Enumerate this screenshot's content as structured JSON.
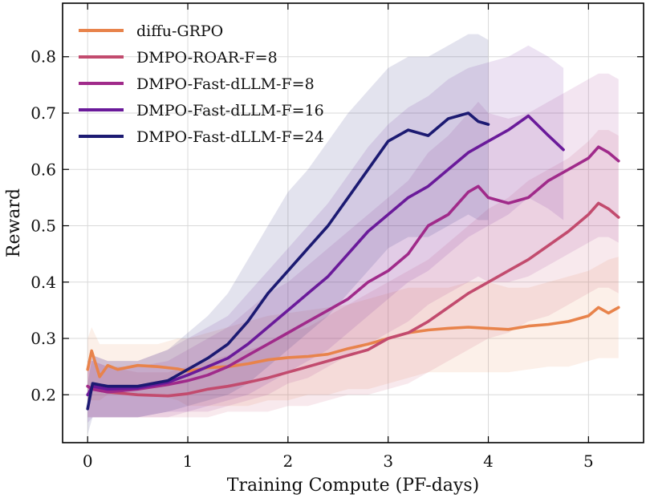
{
  "chart_data": {
    "type": "line",
    "xlabel": "Training Compute (PF-days)",
    "ylabel": "Reward",
    "xlim": [
      -0.25,
      5.55
    ],
    "ylim": [
      0.115,
      0.895
    ],
    "xticks": [
      0,
      1,
      2,
      3,
      4,
      5
    ],
    "yticks": [
      0.2,
      0.3,
      0.4,
      0.5,
      0.6,
      0.7,
      0.8
    ],
    "grid": true,
    "legend_position": "top-left",
    "series": [
      {
        "name": "diffu-GRPO",
        "color": "#e8834b",
        "x": [
          0,
          0.04,
          0.12,
          0.2,
          0.3,
          0.5,
          0.7,
          0.9,
          1.0,
          1.2,
          1.4,
          1.6,
          1.8,
          2.0,
          2.2,
          2.4,
          2.6,
          2.8,
          3.0,
          3.2,
          3.4,
          3.6,
          3.8,
          4.0,
          4.2,
          4.4,
          4.6,
          4.8,
          5.0,
          5.1,
          5.2,
          5.3
        ],
        "y": [
          0.245,
          0.278,
          0.232,
          0.252,
          0.245,
          0.252,
          0.25,
          0.246,
          0.242,
          0.248,
          0.25,
          0.255,
          0.262,
          0.266,
          0.268,
          0.272,
          0.282,
          0.29,
          0.3,
          0.31,
          0.315,
          0.318,
          0.32,
          0.318,
          0.316,
          0.322,
          0.325,
          0.33,
          0.34,
          0.355,
          0.345,
          0.355
        ],
        "lower": [
          0.19,
          0.19,
          0.19,
          0.2,
          0.2,
          0.2,
          0.2,
          0.19,
          0.18,
          0.18,
          0.18,
          0.18,
          0.19,
          0.19,
          0.2,
          0.2,
          0.21,
          0.21,
          0.22,
          0.23,
          0.24,
          0.24,
          0.24,
          0.24,
          0.24,
          0.245,
          0.25,
          0.25,
          0.26,
          0.265,
          0.265,
          0.265
        ],
        "upper": [
          0.3,
          0.32,
          0.29,
          0.29,
          0.29,
          0.29,
          0.29,
          0.3,
          0.3,
          0.31,
          0.32,
          0.33,
          0.34,
          0.345,
          0.35,
          0.355,
          0.36,
          0.37,
          0.38,
          0.39,
          0.39,
          0.39,
          0.4,
          0.4,
          0.39,
          0.39,
          0.4,
          0.41,
          0.42,
          0.43,
          0.44,
          0.445
        ]
      },
      {
        "name": "DMPO-ROAR-F=8",
        "color": "#c24b6e",
        "x": [
          0,
          0.05,
          0.2,
          0.5,
          0.8,
          1.0,
          1.2,
          1.4,
          1.6,
          1.8,
          2.0,
          2.2,
          2.4,
          2.6,
          2.8,
          3.0,
          3.2,
          3.4,
          3.6,
          3.8,
          4.0,
          4.2,
          4.4,
          4.6,
          4.8,
          5.0,
          5.1,
          5.2,
          5.3
        ],
        "y": [
          0.215,
          0.21,
          0.205,
          0.2,
          0.198,
          0.202,
          0.21,
          0.215,
          0.222,
          0.23,
          0.24,
          0.25,
          0.26,
          0.27,
          0.28,
          0.3,
          0.31,
          0.33,
          0.355,
          0.38,
          0.4,
          0.42,
          0.44,
          0.465,
          0.49,
          0.52,
          0.54,
          0.53,
          0.515
        ],
        "lower": [
          0.16,
          0.16,
          0.16,
          0.16,
          0.16,
          0.16,
          0.16,
          0.17,
          0.17,
          0.17,
          0.18,
          0.18,
          0.19,
          0.2,
          0.2,
          0.21,
          0.22,
          0.24,
          0.26,
          0.28,
          0.3,
          0.31,
          0.33,
          0.34,
          0.36,
          0.38,
          0.39,
          0.39,
          0.38
        ],
        "upper": [
          0.26,
          0.26,
          0.25,
          0.24,
          0.24,
          0.25,
          0.26,
          0.27,
          0.28,
          0.29,
          0.31,
          0.32,
          0.34,
          0.36,
          0.38,
          0.4,
          0.42,
          0.44,
          0.47,
          0.5,
          0.53,
          0.55,
          0.58,
          0.6,
          0.62,
          0.65,
          0.67,
          0.67,
          0.66
        ]
      },
      {
        "name": "DMPO-Fast-dLLM-F=8",
        "color": "#a02a8a",
        "x": [
          0,
          0.05,
          0.2,
          0.5,
          0.8,
          1.0,
          1.2,
          1.4,
          1.6,
          1.8,
          2.0,
          2.2,
          2.4,
          2.6,
          2.8,
          3.0,
          3.2,
          3.4,
          3.6,
          3.8,
          3.9,
          4.0,
          4.2,
          4.4,
          4.6,
          4.8,
          5.0,
          5.1,
          5.2,
          5.3
        ],
        "y": [
          0.215,
          0.21,
          0.205,
          0.21,
          0.218,
          0.225,
          0.235,
          0.25,
          0.27,
          0.29,
          0.31,
          0.33,
          0.35,
          0.37,
          0.4,
          0.42,
          0.45,
          0.5,
          0.52,
          0.56,
          0.57,
          0.55,
          0.54,
          0.55,
          0.58,
          0.6,
          0.62,
          0.64,
          0.63,
          0.615
        ],
        "lower": [
          0.16,
          0.16,
          0.16,
          0.16,
          0.16,
          0.17,
          0.17,
          0.18,
          0.19,
          0.2,
          0.22,
          0.23,
          0.25,
          0.27,
          0.29,
          0.31,
          0.33,
          0.36,
          0.38,
          0.4,
          0.41,
          0.4,
          0.4,
          0.41,
          0.43,
          0.45,
          0.47,
          0.48,
          0.48,
          0.47
        ],
        "upper": [
          0.26,
          0.26,
          0.25,
          0.25,
          0.26,
          0.28,
          0.3,
          0.32,
          0.35,
          0.38,
          0.4,
          0.43,
          0.46,
          0.49,
          0.52,
          0.55,
          0.58,
          0.63,
          0.66,
          0.7,
          0.72,
          0.7,
          0.69,
          0.7,
          0.72,
          0.74,
          0.76,
          0.77,
          0.77,
          0.76
        ]
      },
      {
        "name": "DMPO-Fast-dLLM-F=16",
        "color": "#6a1a9a",
        "x": [
          0,
          0.05,
          0.2,
          0.5,
          0.8,
          1.0,
          1.2,
          1.4,
          1.6,
          1.8,
          2.0,
          2.2,
          2.4,
          2.6,
          2.8,
          3.0,
          3.2,
          3.4,
          3.6,
          3.8,
          4.0,
          4.2,
          4.4,
          4.6,
          4.75
        ],
        "y": [
          0.2,
          0.215,
          0.21,
          0.212,
          0.222,
          0.235,
          0.25,
          0.265,
          0.29,
          0.32,
          0.35,
          0.38,
          0.41,
          0.45,
          0.49,
          0.52,
          0.55,
          0.57,
          0.6,
          0.63,
          0.65,
          0.67,
          0.695,
          0.66,
          0.635
        ],
        "lower": [
          0.15,
          0.16,
          0.16,
          0.16,
          0.17,
          0.17,
          0.18,
          0.19,
          0.2,
          0.22,
          0.24,
          0.26,
          0.28,
          0.31,
          0.34,
          0.37,
          0.4,
          0.42,
          0.45,
          0.48,
          0.5,
          0.52,
          0.55,
          0.53,
          0.51
        ],
        "upper": [
          0.25,
          0.27,
          0.26,
          0.26,
          0.28,
          0.3,
          0.32,
          0.34,
          0.38,
          0.42,
          0.46,
          0.5,
          0.54,
          0.59,
          0.64,
          0.68,
          0.71,
          0.73,
          0.76,
          0.78,
          0.79,
          0.8,
          0.82,
          0.8,
          0.78
        ]
      },
      {
        "name": "DMPO-Fast-dLLM-F=24",
        "color": "#1c1a72",
        "x": [
          0,
          0.05,
          0.2,
          0.5,
          0.8,
          1.0,
          1.2,
          1.4,
          1.6,
          1.8,
          2.0,
          2.2,
          2.4,
          2.6,
          2.8,
          3.0,
          3.2,
          3.4,
          3.6,
          3.8,
          3.9,
          4.0
        ],
        "y": [
          0.175,
          0.22,
          0.215,
          0.215,
          0.225,
          0.245,
          0.265,
          0.29,
          0.33,
          0.38,
          0.42,
          0.46,
          0.5,
          0.55,
          0.6,
          0.65,
          0.67,
          0.66,
          0.69,
          0.7,
          0.685,
          0.68
        ],
        "lower": [
          0.13,
          0.16,
          0.16,
          0.16,
          0.17,
          0.18,
          0.19,
          0.2,
          0.22,
          0.25,
          0.28,
          0.31,
          0.34,
          0.38,
          0.42,
          0.46,
          0.48,
          0.48,
          0.5,
          0.52,
          0.51,
          0.51
        ],
        "upper": [
          0.22,
          0.27,
          0.26,
          0.26,
          0.28,
          0.31,
          0.34,
          0.38,
          0.44,
          0.5,
          0.56,
          0.6,
          0.65,
          0.7,
          0.74,
          0.78,
          0.8,
          0.8,
          0.82,
          0.84,
          0.84,
          0.83
        ]
      }
    ]
  }
}
